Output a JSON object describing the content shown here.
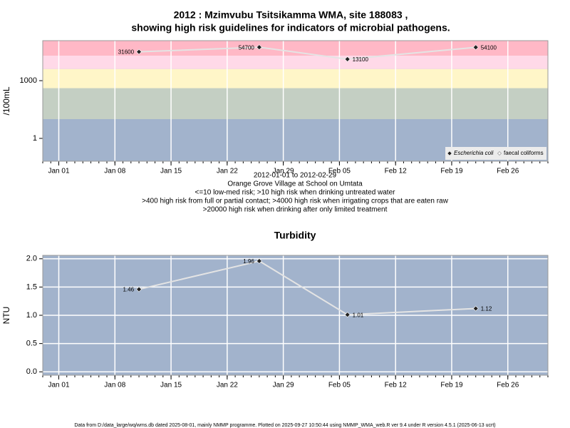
{
  "chart_data": [
    {
      "type": "line",
      "title": [
        "2012 : Mzimvubu Tsitsikamma WMA, site 188083 ,",
        "showing high risk guidelines for indicators of microbial pathogens."
      ],
      "ylabel": "/100mL",
      "notes": [
        "2012-01-01 to 2012-02-29",
        "Orange Grove Village at School on Umtata",
        "<=10 low-med risk; >10 high risk when drinking untreated water",
        ">400 high risk from full or partial contact; >4000 high risk when irrigating crops that are eaten raw",
        ">20000 high risk when drinking after only limited treatment"
      ],
      "x": [
        "2012-01-11",
        "2012-01-26",
        "2012-02-06",
        "2012-02-22"
      ],
      "series": [
        {
          "name": "Escherichia coli",
          "color": "#222222",
          "values": [
            31600,
            54700,
            13100,
            54100
          ]
        },
        {
          "name": "faecal coliforms",
          "color": "#ffffff",
          "values": [
            null,
            null,
            null,
            null
          ]
        }
      ],
      "log_y": true,
      "ylim": [
        0.065,
        120000
      ],
      "yticks": [
        1,
        1000
      ],
      "xlim": [
        "2011-12-30",
        "2012-03-02"
      ],
      "xticks": [
        {
          "value": "2012-01-01",
          "label": "Jan 01"
        },
        {
          "value": "2012-01-08",
          "label": "Jan 08"
        },
        {
          "value": "2012-01-15",
          "label": "Jan 15"
        },
        {
          "value": "2012-01-22",
          "label": "Jan 22"
        },
        {
          "value": "2012-01-29",
          "label": "Jan 29"
        },
        {
          "value": "2012-02-05",
          "label": "Feb 05"
        },
        {
          "value": "2012-02-12",
          "label": "Feb 12"
        },
        {
          "value": "2012-02-19",
          "label": "Feb 19"
        },
        {
          "value": "2012-02-26",
          "label": "Feb 26"
        }
      ],
      "bands": [
        {
          "from": 20000,
          "color": "#ffb8c6"
        },
        {
          "from": 4000,
          "color": "#ffd9e8"
        },
        {
          "from": 400,
          "color": "#fff6c8"
        },
        {
          "from": 10,
          "color": "#c4cfc3"
        }
      ],
      "background": "#a2b3cc",
      "legend": "bottom right"
    },
    {
      "type": "line",
      "title": "Turbidity",
      "ylabel": "NTU",
      "x": [
        "2012-01-11",
        "2012-01-26",
        "2012-02-06",
        "2012-02-22"
      ],
      "series": [
        {
          "name": "Turbidity",
          "color": "#222222",
          "values": [
            1.46,
            1.96,
            1.01,
            1.12
          ]
        }
      ],
      "ylim": [
        -0.06,
        2.06
      ],
      "yticks": [
        {
          "value": 0,
          "label": "0.0"
        },
        0.5,
        {
          "value": 1,
          "label": "1.0"
        },
        1.5,
        {
          "value": 2,
          "label": "2.0"
        }
      ],
      "xlim": [
        "2011-12-30",
        "2012-03-02"
      ],
      "xticks": [
        {
          "value": "2012-01-01",
          "label": "Jan 01"
        },
        {
          "value": "2012-01-08",
          "label": "Jan 08"
        },
        {
          "value": "2012-01-15",
          "label": "Jan 15"
        },
        {
          "value": "2012-01-22",
          "label": "Jan 22"
        },
        {
          "value": "2012-01-29",
          "label": "Jan 29"
        },
        {
          "value": "2012-02-05",
          "label": "Feb 05"
        },
        {
          "value": "2012-02-12",
          "label": "Feb 12"
        },
        {
          "value": "2012-02-19",
          "label": "Feb 19"
        },
        {
          "value": "2012-02-26",
          "label": "Feb 26"
        }
      ],
      "background": "#a2b3cc",
      "grid": true
    }
  ],
  "footer": "Data from D:/data_large/wq/wms.db dated 2025-08-01, mainly NMMP programme. Plotted on 2025-09-27 10:50:44 using NMMP_WMA_web.R ver 9.4 under R version 4.5.1 (2025-06-13 ucrt)"
}
